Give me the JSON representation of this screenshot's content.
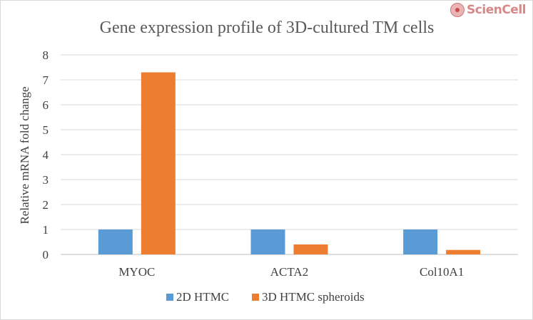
{
  "logo": {
    "text": "ScienCell",
    "icon": "cell-icon"
  },
  "chart_data": {
    "type": "bar",
    "title": "Gene expression profile of 3D-cultured  TM cells",
    "xlabel": "",
    "ylabel": "Relative mRNA fold change",
    "categories": [
      "MYOC",
      "ACTA2",
      "Col10A1"
    ],
    "series": [
      {
        "name": "2D HTMC",
        "values": [
          1,
          1,
          1
        ],
        "color": "#5b9bd5"
      },
      {
        "name": "3D HTMC spheroids",
        "values": [
          7.3,
          0.4,
          0.18
        ],
        "color": "#ed7d31"
      }
    ],
    "ylim": [
      0,
      8
    ],
    "yticks": [
      0,
      1,
      2,
      3,
      4,
      5,
      6,
      7,
      8
    ],
    "grid": true,
    "legend": "bottom"
  }
}
